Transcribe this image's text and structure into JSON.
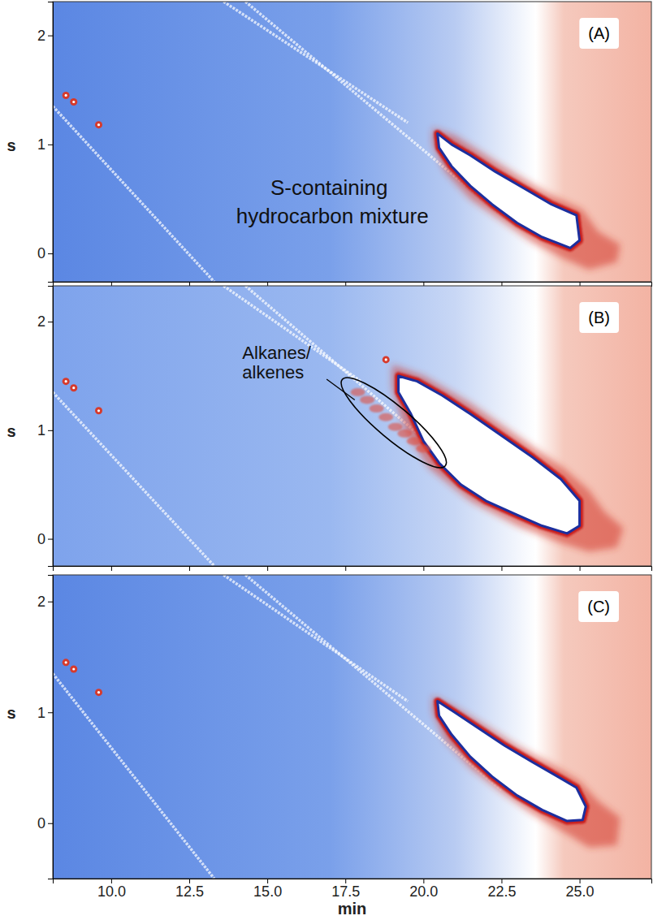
{
  "chart_data": [
    {
      "type": "contour",
      "label": "(A)",
      "ylabel": "s",
      "xlim": [
        8.13,
        27.3
      ],
      "ylim": [
        -0.26,
        2.31
      ],
      "xticks": [
        10,
        12.5,
        15,
        17.5,
        20,
        22.5,
        25
      ],
      "yticks": [
        0,
        1,
        2
      ],
      "tick_labels": "y",
      "background": {
        "x": [
          8.13,
          17,
          21,
          23.6,
          24.5,
          27.3
        ],
        "colors": [
          "#5b87e3",
          "#7aa0ea",
          "#b8cbf2",
          "#ffffff",
          "#f5c9bd",
          "#f3b3a3"
        ]
      },
      "streaks": [
        {
          "x": [
            8.13,
            13.3
          ],
          "y": [
            1.35,
            -0.26
          ]
        },
        {
          "x": [
            13.6,
            19.5
          ],
          "y": [
            2.31,
            1.2
          ]
        },
        {
          "x": [
            14.3,
            22.5
          ],
          "y": [
            2.31,
            0.35
          ]
        }
      ],
      "spots": {
        "x": [
          8.55,
          8.8,
          9.6
        ],
        "y": [
          1.45,
          1.39,
          1.18
        ]
      },
      "halo": {
        "x": [
          20.3,
          21,
          22,
          23,
          24,
          25.1,
          25.6,
          26.3,
          26.2,
          25.3,
          24.5,
          23.5,
          22.5,
          21.5,
          20.7,
          20.3
        ],
        "y": [
          1.15,
          1.08,
          0.9,
          0.72,
          0.55,
          0.4,
          0.2,
          0.08,
          -0.08,
          -0.15,
          -0.05,
          0.1,
          0.3,
          0.5,
          0.75,
          1.0
        ]
      },
      "mixture": {
        "x": [
          20.45,
          20.9,
          21.5,
          22.3,
          23.2,
          24.1,
          24.9,
          25.0,
          24.7,
          23.8,
          23.0,
          22.2,
          21.5,
          20.9,
          20.5
        ],
        "y": [
          1.1,
          1.0,
          0.9,
          0.75,
          0.6,
          0.45,
          0.35,
          0.12,
          0.05,
          0.15,
          0.28,
          0.45,
          0.62,
          0.8,
          0.97
        ]
      },
      "annotations": [
        {
          "text": "S-containing",
          "x": 15.1,
          "y": 0.54
        },
        {
          "text": "hydrocarbon mixture",
          "x": 14.0,
          "y": 0.28
        }
      ]
    },
    {
      "type": "contour",
      "label": "(B)",
      "ylabel": "s",
      "xlim": [
        8.13,
        27.3
      ],
      "ylim": [
        -0.25,
        2.33
      ],
      "xticks": [
        10,
        12.5,
        15,
        17.5,
        20,
        22.5,
        25
      ],
      "yticks": [
        0,
        1,
        2
      ],
      "tick_labels": "y",
      "background": {
        "x": [
          8.13,
          17,
          21,
          23.6,
          24.5,
          27.3
        ],
        "colors": [
          "#7ea3ec",
          "#9ab8f0",
          "#c8d7f5",
          "#ffffff",
          "#f5c9bd",
          "#f3b3a3"
        ]
      },
      "streaks": [
        {
          "x": [
            8.13,
            13.3
          ],
          "y": [
            1.35,
            -0.25
          ]
        },
        {
          "x": [
            13.6,
            18.0
          ],
          "y": [
            2.33,
            1.45
          ]
        },
        {
          "x": [
            14.3,
            20.5
          ],
          "y": [
            2.33,
            0.8
          ]
        }
      ],
      "spots": {
        "x": [
          8.55,
          8.8,
          9.6,
          18.8
        ],
        "y": [
          1.45,
          1.39,
          1.18,
          1.65
        ]
      },
      "peaks": {
        "x": [
          17.9,
          18.2,
          18.5,
          18.8,
          19.1,
          19.4,
          19.7,
          20.0
        ],
        "y": [
          1.35,
          1.28,
          1.2,
          1.12,
          1.03,
          0.97,
          0.9,
          0.83
        ]
      },
      "region": {
        "x": [
          17.6,
          20.5
        ],
        "y": [
          1.42,
          0.72
        ]
      },
      "pointer": {
        "x": [
          16.9,
          17.8
        ],
        "y": [
          1.47,
          1.28
        ]
      },
      "halo": {
        "x": [
          19.0,
          20.0,
          21.5,
          23,
          24.5,
          25.3,
          25.8,
          26.4,
          26.2,
          25.3,
          24.3,
          23,
          21.5,
          20.2,
          19.4,
          19.0
        ],
        "y": [
          1.6,
          1.5,
          1.25,
          0.95,
          0.65,
          0.45,
          0.25,
          0.1,
          -0.08,
          -0.12,
          -0.03,
          0.12,
          0.35,
          0.65,
          1.0,
          1.4
        ]
      },
      "mixture": {
        "x": [
          19.2,
          19.8,
          20.6,
          21.5,
          22.5,
          23.5,
          24.4,
          25.0,
          25.0,
          24.6,
          23.8,
          23.0,
          22.0,
          21.2,
          20.5,
          20.0,
          19.6,
          19.2
        ],
        "y": [
          1.5,
          1.45,
          1.32,
          1.15,
          0.95,
          0.75,
          0.55,
          0.35,
          0.12,
          0.05,
          0.12,
          0.22,
          0.35,
          0.5,
          0.7,
          0.9,
          1.15,
          1.35
        ]
      },
      "annotations": [
        {
          "text": "Alkanes/",
          "x": 14.2,
          "y": 1.66
        },
        {
          "text": "alkenes",
          "x": 14.2,
          "y": 1.48
        }
      ]
    },
    {
      "type": "contour",
      "label": "(C)",
      "ylabel": "s",
      "xlabel": "min",
      "xlim": [
        8.13,
        27.3
      ],
      "ylim": [
        -0.5,
        2.24
      ],
      "xticks": [
        {
          "value": 10,
          "label": "10.0"
        },
        {
          "value": 12.5,
          "label": "12.5"
        },
        {
          "value": 15,
          "label": "15.0"
        },
        {
          "value": 17.5,
          "label": "17.5"
        },
        {
          "value": 20,
          "label": "20.0"
        },
        {
          "value": 22.5,
          "label": "22.5"
        },
        {
          "value": 25,
          "label": "25.0"
        }
      ],
      "yticks": [
        0,
        1,
        2
      ],
      "background": {
        "x": [
          8.13,
          17,
          21,
          23.6,
          24.5,
          27.3
        ],
        "colors": [
          "#5b87e3",
          "#7aa0ea",
          "#b8cbf2",
          "#ffffff",
          "#f5c9bd",
          "#f3b3a3"
        ]
      },
      "streaks": [
        {
          "x": [
            8.13,
            13.3
          ],
          "y": [
            1.35,
            -0.5
          ]
        },
        {
          "x": [
            13.6,
            19.5
          ],
          "y": [
            2.24,
            1.1
          ]
        },
        {
          "x": [
            14.3,
            22.5
          ],
          "y": [
            2.24,
            0.3
          ]
        }
      ],
      "spots": {
        "x": [
          8.55,
          8.8,
          9.6
        ],
        "y": [
          1.45,
          1.39,
          1.18
        ]
      },
      "halo": {
        "x": [
          20.3,
          21,
          22,
          23,
          24,
          25,
          25.6,
          26.3,
          26.2,
          25.3,
          24.5,
          23.5,
          22.5,
          21.5,
          20.7,
          20.3
        ],
        "y": [
          1.15,
          1.05,
          0.88,
          0.7,
          0.55,
          0.38,
          0.2,
          0.05,
          -0.2,
          -0.22,
          -0.08,
          0.08,
          0.28,
          0.5,
          0.75,
          1.0
        ]
      },
      "mixture": {
        "x": [
          20.45,
          21.0,
          21.8,
          22.6,
          23.5,
          24.3,
          24.9,
          25.2,
          25.1,
          24.6,
          23.8,
          23.0,
          22.2,
          21.5,
          20.9,
          20.5
        ],
        "y": [
          1.1,
          1.0,
          0.85,
          0.7,
          0.55,
          0.42,
          0.32,
          0.15,
          0.03,
          0.02,
          0.12,
          0.25,
          0.42,
          0.6,
          0.8,
          0.97
        ]
      }
    }
  ]
}
